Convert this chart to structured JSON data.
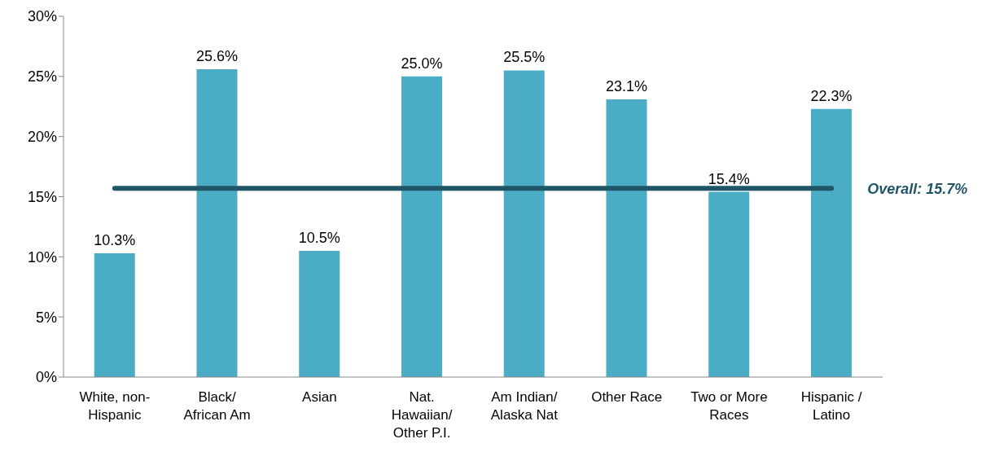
{
  "chart_data": {
    "type": "bar",
    "categories": [
      "White, non-Hispanic",
      "Black/African Am",
      "Asian",
      "Nat. Hawaiian/Other P.I.",
      "Am Indian/Alaska Nat",
      "Other Race",
      "Two or More Races",
      "Hispanic / Latino"
    ],
    "values": [
      10.3,
      25.6,
      10.5,
      25.0,
      25.5,
      23.1,
      15.4,
      22.3
    ],
    "value_labels": [
      "10.3%",
      "25.6%",
      "10.5%",
      "25.0%",
      "25.5%",
      "23.1%",
      "15.4%",
      "22.3%"
    ],
    "color": "#4bacc6",
    "ylim": [
      0,
      30
    ],
    "yticks": [
      {
        "value": 0,
        "label": "0%"
      },
      {
        "value": 5,
        "label": "5%"
      },
      {
        "value": 10,
        "label": "10%"
      },
      {
        "value": 15,
        "label": "15%"
      },
      {
        "value": 20,
        "label": "20%"
      },
      {
        "value": 25,
        "label": "25%"
      },
      {
        "value": 30,
        "label": "30%"
      }
    ],
    "ref_lines": [
      {
        "axis": "y",
        "value": 15.7,
        "label": "Overall: 15.7%",
        "color": "#1f5566"
      }
    ],
    "grid": false,
    "legend": false
  }
}
